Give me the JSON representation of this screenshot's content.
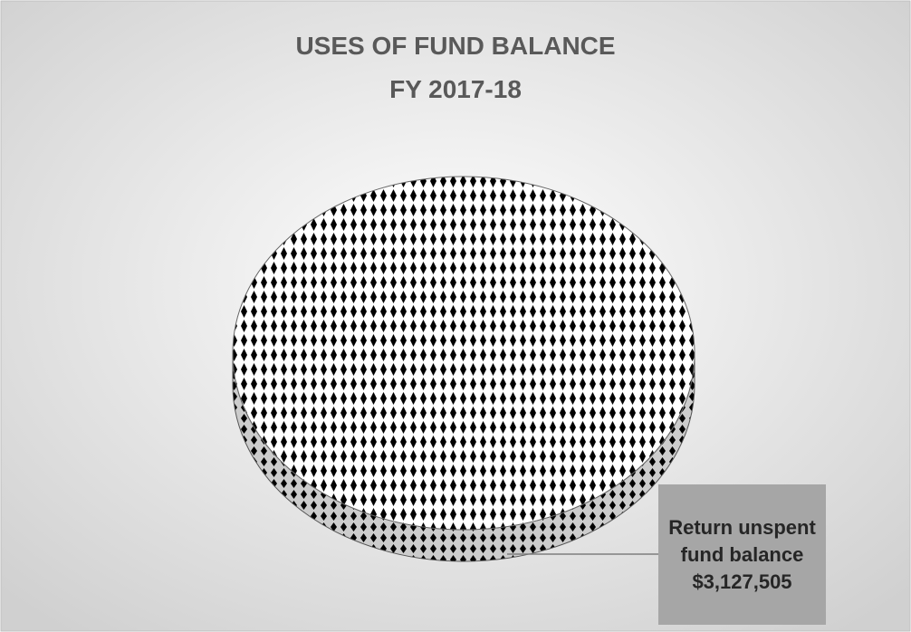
{
  "chart_data": {
    "type": "pie",
    "title": "USES OF FUND BALANCE",
    "subtitle": "FY 2017-18",
    "categories": [
      "Return unspent fund balance"
    ],
    "values": [
      3127505
    ],
    "value_labels": [
      "$3,127,505"
    ],
    "color": "#000000"
  }
}
